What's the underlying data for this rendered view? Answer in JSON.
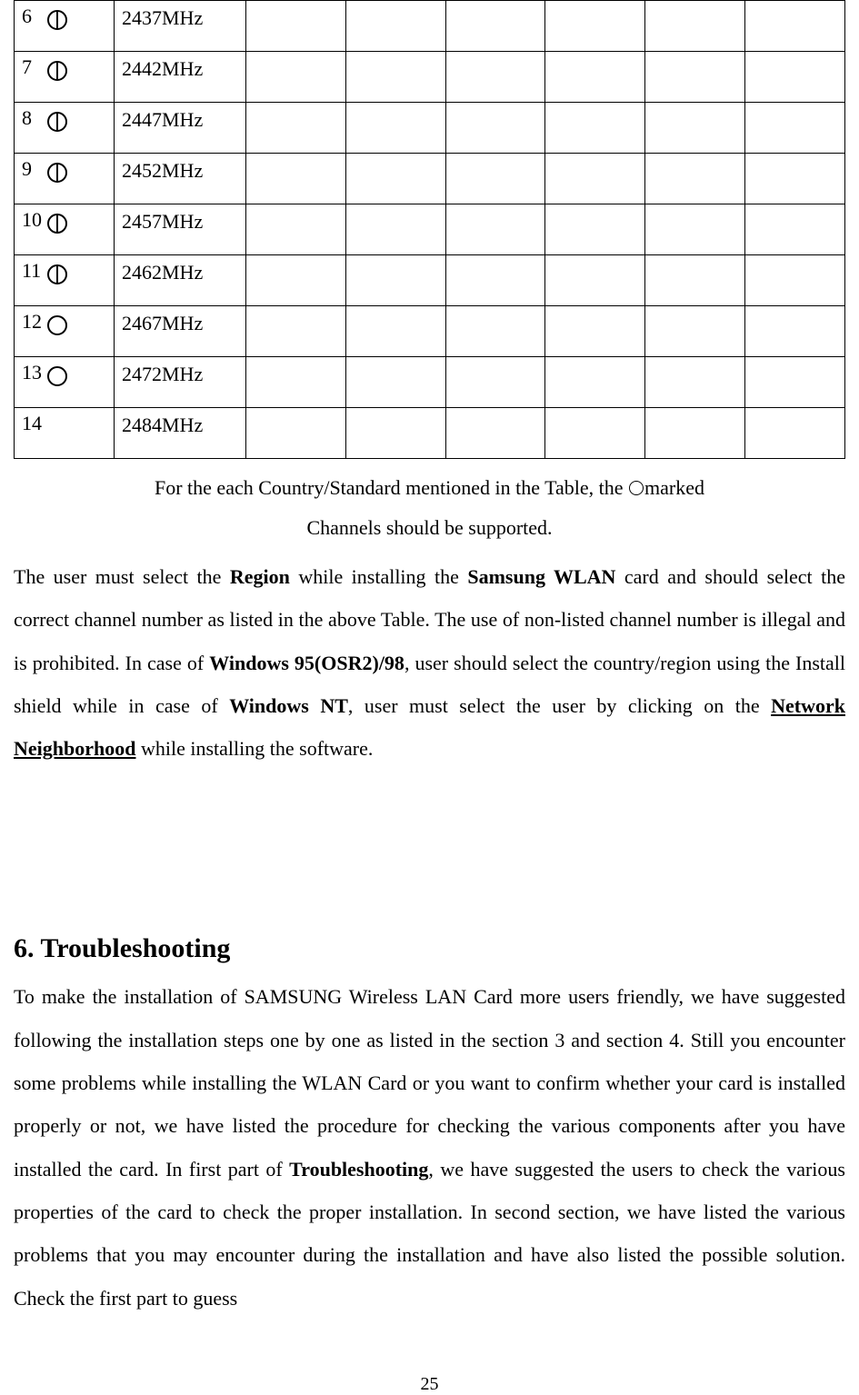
{
  "table": {
    "columns_count": 8,
    "rows": [
      {
        "channel": "6",
        "marked": true,
        "double": true,
        "freq": "2437MHz"
      },
      {
        "channel": "7",
        "marked": true,
        "double": true,
        "freq": "2442MHz"
      },
      {
        "channel": "8",
        "marked": true,
        "double": true,
        "freq": "2447MHz"
      },
      {
        "channel": "9",
        "marked": true,
        "double": true,
        "freq": "2452MHz"
      },
      {
        "channel": "10",
        "marked": true,
        "double": true,
        "freq": "2457MHz"
      },
      {
        "channel": "11",
        "marked": true,
        "double": true,
        "freq": "2462MHz"
      },
      {
        "channel": "12",
        "marked": true,
        "double": false,
        "freq": "2467MHz"
      },
      {
        "channel": "13",
        "marked": true,
        "double": false,
        "freq": "2472MHz"
      },
      {
        "channel": "14",
        "marked": false,
        "double": false,
        "freq": "2484MHz"
      }
    ]
  },
  "caption": {
    "prefix": "For the each Country/Standard mentioned in the Table, the    ",
    "suffix": "marked",
    "line2": "Channels should be supported."
  },
  "para1": {
    "t1": "The user must select the ",
    "b1": "Region",
    "t2": " while installing the ",
    "b2": "Samsung WLAN",
    "t3": " card and should select the correct channel number as listed in the above Table. The use of non-listed channel number is illegal and is prohibited. In case of ",
    "b3": "Windows 95(OSR2)/98",
    "t4": ", user should select the country/region using the Install shield while in case of ",
    "b4": "Windows NT",
    "t5": ", user must select the user by clicking on the ",
    "b5": "Network Neighborhood",
    "t6": " while installing the software."
  },
  "section_heading": "6. Troubleshooting",
  "para2": {
    "t1": "To make the installation of SAMSUNG Wireless LAN Card more users friendly, we have suggested following the installation steps one by one as listed in the section 3 and section 4. Still you encounter some problems while installing the WLAN Card or you want to confirm whether your card is installed properly or not, we have listed the procedure for checking the various components after you have installed the card. In first part of ",
    "b1": "Troubleshooting",
    "t2": ", we have suggested the users to check the various properties of the card to check the proper installation. In second section, we have listed the various problems that you may encounter during the installation and have also listed the possible solution. Check the first part to guess"
  },
  "page_number": "25",
  "colors": {
    "text": "#000000",
    "background": "#ffffff",
    "border": "#000000"
  },
  "typography": {
    "body_fontsize_pt": 16,
    "heading_fontsize_pt": 22,
    "font_family": "Times New Roman"
  }
}
